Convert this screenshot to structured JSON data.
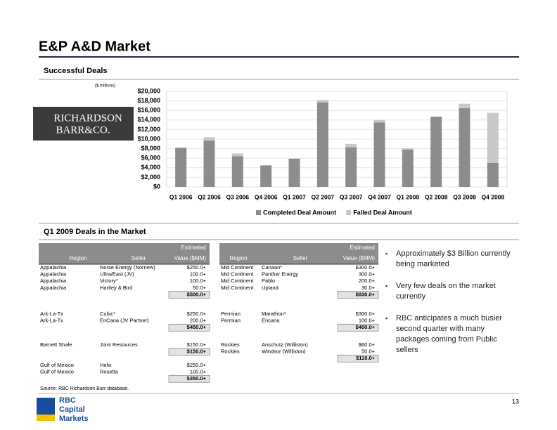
{
  "title": "E&P A&D Market",
  "section1": "Successful Deals",
  "logo": {
    "line1": "RICHARDSON",
    "line2": "BARR&CO."
  },
  "chart_data": {
    "type": "bar",
    "stacked": true,
    "ylabel": "($ millions)",
    "categories": [
      "Q1 2006",
      "Q2 2006",
      "Q3 2006",
      "Q4 2006",
      "Q1 2007",
      "Q2 2007",
      "Q3 2007",
      "Q4 2007",
      "Q1 2008",
      "Q2 2008",
      "Q3 2008",
      "Q4 2008"
    ],
    "series": [
      {
        "name": "Completed Deal Amount",
        "color": "#8c8c8c",
        "values": [
          8200,
          9700,
          6400,
          4500,
          5900,
          17700,
          8300,
          13500,
          7800,
          14700,
          16500,
          5000
        ]
      },
      {
        "name": "Failed Deal Amount",
        "color": "#c8c8c8",
        "values": [
          0,
          700,
          600,
          0,
          0,
          500,
          700,
          500,
          300,
          0,
          900,
          10500
        ]
      }
    ],
    "ylim": [
      0,
      20000
    ],
    "yticks": [
      {
        "value": 0,
        "label": "$0"
      },
      {
        "value": 2000,
        "label": "$2,000"
      },
      {
        "value": 4000,
        "label": "$4,000"
      },
      {
        "value": 6000,
        "label": "$6,000"
      },
      {
        "value": 8000,
        "label": "$8,000"
      },
      {
        "value": 10000,
        "label": "$10,000"
      },
      {
        "value": 12000,
        "label": "$12,000"
      },
      {
        "value": 14000,
        "label": "$14,000"
      },
      {
        "value": 16000,
        "label": "$16,000"
      },
      {
        "value": 18000,
        "label": "$18,000"
      },
      {
        "value": 20000,
        "label": "$20,000"
      }
    ],
    "grid": true,
    "legend": "bottom"
  },
  "section2": "Q1 2009 Deals in the Market",
  "tables": [
    {
      "header": {
        "region": "Region",
        "seller": "Seller",
        "value_top": "Estimated",
        "value": "Value ($MM)"
      },
      "groups": [
        {
          "rows": [
            [
              "Appalachia",
              "Norse Energy (Nornew)",
              "$250.0+"
            ],
            [
              "Appalachia",
              "Ultra/East (JV)",
              "100.0+"
            ],
            [
              "Appalachia",
              "Victory*",
              "100.0+"
            ],
            [
              "Appalachia",
              "Hartley & Bird",
              "50.0+"
            ]
          ],
          "total": "$500.0+"
        },
        {
          "rows": [
            [
              "Ark-La-Tx",
              "Cubic*",
              "$250.0+"
            ],
            [
              "Ark-La-Tx",
              "EnCana (JV Partner)",
              "200.0+"
            ]
          ],
          "total": "$450.0+"
        },
        {
          "rows": [
            [
              "Barnett Shale",
              "Joint Resources",
              "$150.0+"
            ]
          ],
          "total": "$150.0+"
        },
        {
          "rows": [
            [
              "Gulf of Mexico",
              "Helix",
              "$250.0+"
            ],
            [
              "Gulf of Mexico",
              "Rosetta",
              "100.0+"
            ]
          ],
          "total": "$350.0+"
        }
      ]
    },
    {
      "header": {
        "region": "Region",
        "seller": "Seller",
        "value_top": "Estimated",
        "value": "Value ($MM)"
      },
      "groups": [
        {
          "rows": [
            [
              "Mid Continent",
              "Canaan*",
              "$300.0+"
            ],
            [
              "Mid Continent",
              "Panther Energy",
              "300.0+"
            ],
            [
              "Mid Continent",
              "Pablo",
              "200.0+"
            ],
            [
              "Mid Continent",
              "Upland",
              "30.0+"
            ]
          ],
          "total": "$830.0+"
        },
        {
          "rows": [
            [
              "Permian",
              "Marathon*",
              "$300.0+"
            ],
            [
              "Permian",
              "Encana",
              "100.0+"
            ]
          ],
          "total": "$400.0+"
        },
        {
          "rows": [
            [
              "Rockies",
              "Anschutz (Williston)",
              "$60.0+"
            ],
            [
              "Rockies",
              "Windsor (Williston)",
              "50.0+"
            ]
          ],
          "total": "$110.0+"
        }
      ]
    }
  ],
  "bullets": [
    "Approximately $3 Billion currently being marketed",
    "Very few deals on the market currently",
    "RBC anticipates a much busier second quarter with many packages coming from Public sellers"
  ],
  "source": "Source: RBC Richardson Barr database.",
  "page_number": "13",
  "footer_logo": {
    "line1": "RBC",
    "line2": "Capital",
    "line3": "Markets"
  }
}
